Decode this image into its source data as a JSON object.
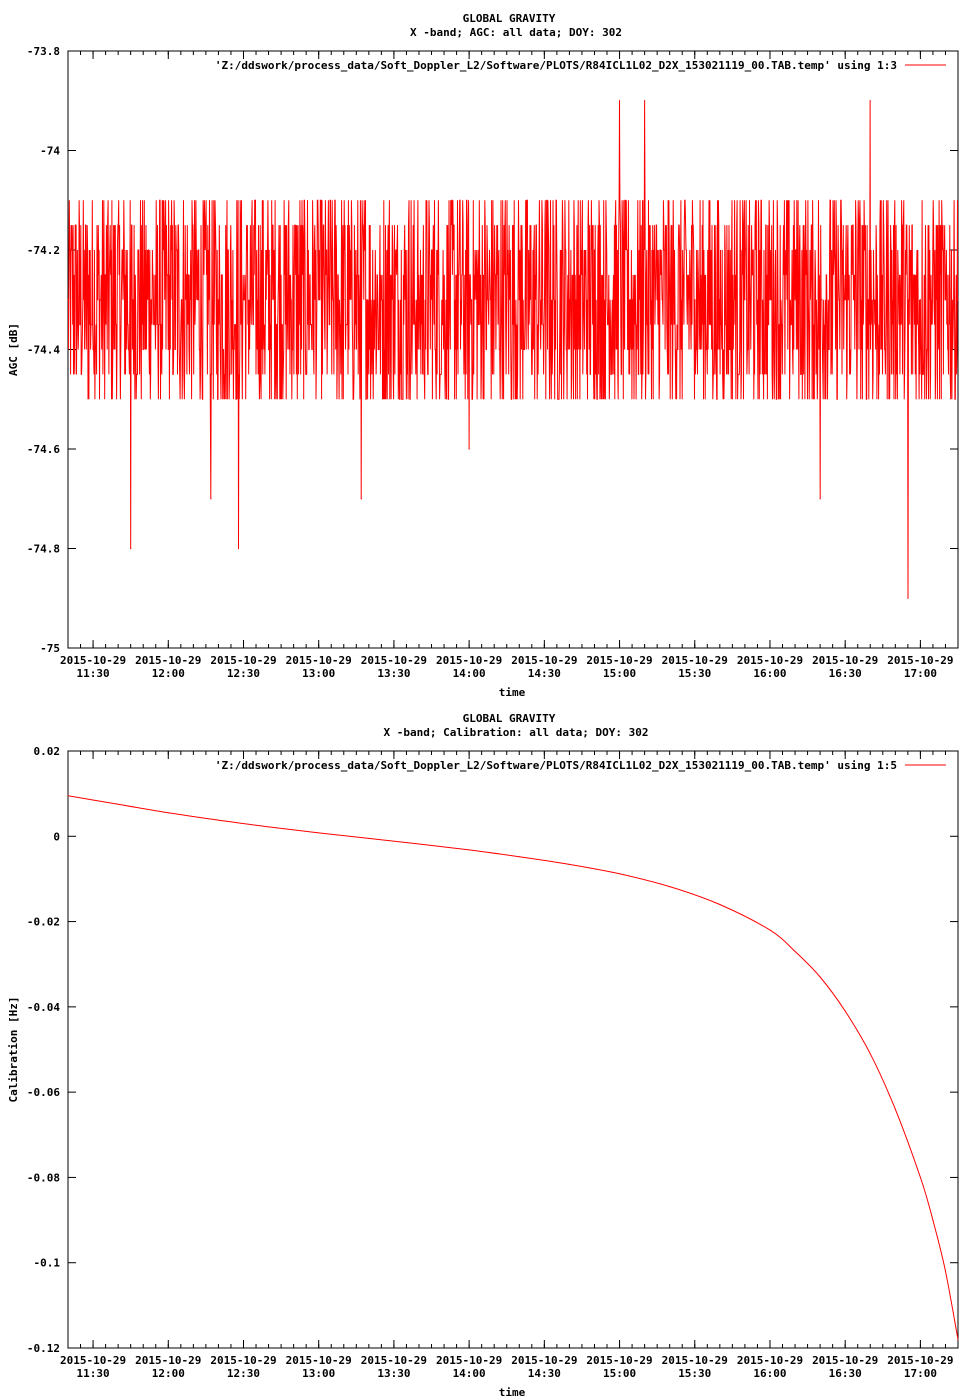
{
  "colors": {
    "series": "#ff0000",
    "axes": "#000000",
    "background": "#ffffff"
  },
  "chart_data": [
    {
      "type": "line",
      "title": "GLOBAL GRAVITY",
      "subtitle": "X -band; AGC: all data; DOY: 302",
      "xlabel": "time",
      "ylabel": "AGC [dB]",
      "ylim": [
        -75,
        -73.8
      ],
      "yticks": [
        "-73.8",
        "-74",
        "-74.2",
        "-74.4",
        "-74.6",
        "-74.8",
        "-75"
      ],
      "ytick_values": [
        -73.8,
        -74.0,
        -74.2,
        -74.4,
        -74.6,
        -74.8,
        -75.0
      ],
      "xlim": [
        "2015-10-29 11:20",
        "2015-10-29 17:15"
      ],
      "xtick_date": "2015-10-29",
      "xticks": [
        "11:30",
        "12:00",
        "12:30",
        "13:00",
        "13:30",
        "14:00",
        "14:30",
        "15:00",
        "15:30",
        "16:00",
        "16:30",
        "17:00"
      ],
      "series": [
        {
          "name": "'Z:/ddswork/process_data/Soft_Doppler_L2/Software/PLOTS/R84ICL1L02_D2X_153021119_00.TAB.temp' using 1:3",
          "x": [
            "11:20",
            "11:30",
            "11:38",
            "11:45",
            "11:55",
            "12:00",
            "12:10",
            "12:17",
            "12:20",
            "12:28",
            "12:33",
            "12:40",
            "12:50",
            "13:00",
            "13:10",
            "13:17",
            "13:25",
            "13:30",
            "13:40",
            "13:50",
            "14:00",
            "14:10",
            "14:20",
            "14:30",
            "14:40",
            "14:50",
            "14:55",
            "15:00",
            "15:05",
            "15:10",
            "15:15",
            "15:20",
            "15:30",
            "15:40",
            "15:50",
            "16:00",
            "16:10",
            "16:20",
            "16:30",
            "16:35",
            "16:40",
            "16:45",
            "16:50",
            "16:55",
            "17:00",
            "17:10",
            "17:15"
          ],
          "values": [
            -74.3,
            -74.4,
            -74.3,
            -74.8,
            -74.35,
            -74.4,
            -74.3,
            -74.7,
            -74.3,
            -74.8,
            -74.3,
            -74.4,
            -74.3,
            -74.3,
            -74.3,
            -74.7,
            -74.3,
            -74.3,
            -74.3,
            -74.3,
            -74.6,
            -74.3,
            -74.3,
            -74.3,
            -74.3,
            -74.2,
            -74.3,
            -73.9,
            -74.3,
            -73.9,
            -74.3,
            -74.3,
            -74.3,
            -74.3,
            -74.3,
            -74.3,
            -74.3,
            -74.7,
            -74.3,
            -74.2,
            -73.9,
            -74.3,
            -74.3,
            -74.9,
            -74.3,
            -74.3,
            -74.3
          ],
          "noise_envelope": {
            "low": -74.5,
            "high": -74.1
          }
        }
      ]
    },
    {
      "type": "line",
      "title": "GLOBAL GRAVITY",
      "subtitle": "X -band; Calibration: all data; DOY: 302",
      "xlabel": "time",
      "ylabel": "Calibration [Hz]",
      "ylim": [
        -0.12,
        0.02
      ],
      "yticks": [
        "0.02",
        "0",
        "-0.02",
        "-0.04",
        "-0.06",
        "-0.08",
        "-0.1",
        "-0.12"
      ],
      "ytick_values": [
        0.02,
        0.0,
        -0.02,
        -0.04,
        -0.06,
        -0.08,
        -0.1,
        -0.12
      ],
      "xlim": [
        "2015-10-29 11:20",
        "2015-10-29 17:15"
      ],
      "xtick_date": "2015-10-29",
      "xticks": [
        "11:30",
        "12:00",
        "12:30",
        "13:00",
        "13:30",
        "14:00",
        "14:30",
        "15:00",
        "15:30",
        "16:00",
        "16:30",
        "17:00"
      ],
      "series": [
        {
          "name": "'Z:/ddswork/process_data/Soft_Doppler_L2/Software/PLOTS/R84ICL1L02_D2X_153021119_00.TAB.temp' using 1:5",
          "x": [
            "11:20",
            "11:40",
            "12:00",
            "12:20",
            "12:40",
            "13:00",
            "13:20",
            "13:40",
            "14:00",
            "14:20",
            "14:40",
            "15:00",
            "15:20",
            "15:40",
            "16:00",
            "16:10",
            "16:20",
            "16:30",
            "16:40",
            "16:50",
            "17:00",
            "17:05",
            "17:10",
            "17:15"
          ],
          "values": [
            0.0095,
            0.0075,
            0.0055,
            0.0038,
            0.0022,
            0.0008,
            -0.0005,
            -0.0018,
            -0.0032,
            -0.0048,
            -0.0066,
            -0.0088,
            -0.0118,
            -0.016,
            -0.022,
            -0.027,
            -0.033,
            -0.041,
            -0.051,
            -0.064,
            -0.08,
            -0.09,
            -0.102,
            -0.118
          ]
        }
      ]
    }
  ]
}
